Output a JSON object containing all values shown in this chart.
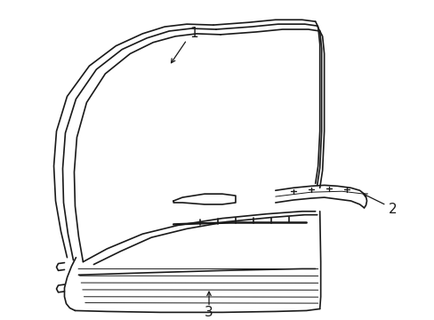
{
  "background_color": "#ffffff",
  "line_color": "#1a1a1a",
  "label_color": "#1a1a1a",
  "lw_main": 1.2,
  "lw_thin": 0.7,
  "lw_thick": 1.8,
  "figsize": [
    4.89,
    3.6
  ],
  "dpi": 100
}
